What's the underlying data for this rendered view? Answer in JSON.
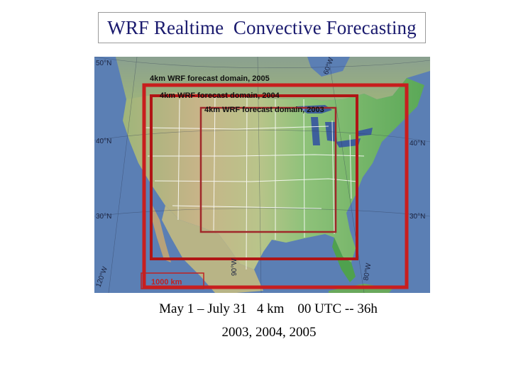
{
  "title": "WRF Realtime  Convective Forecasting",
  "map": {
    "domains": [
      {
        "label": "4km WRF forecast domain, 2005",
        "color": "#c81e1e"
      },
      {
        "label": "4km WRF forecast domain, 2004",
        "color": "#b01515"
      },
      {
        "label": "4km WRF forecast domain, 2003",
        "color": "#a0282a"
      }
    ],
    "grid_labels": {
      "lat_50": "50°N",
      "lat_40_left": "40°N",
      "lat_40_right": "40°N",
      "lat_30_left": "30°N",
      "lat_30_right": "30°N",
      "lon_120": "120°W",
      "lon_90": "90°W",
      "lon_80": "80°W",
      "lon_60": "60°W"
    },
    "scale_bar": "1000 km",
    "colors": {
      "ocean": "#5b7fb4",
      "land_low": "#7ab56a",
      "land_high": "#c9b98a",
      "state_lines": "#ffffff"
    }
  },
  "caption": {
    "line1": "May 1 – July 31   4 km    00 UTC -- 36h",
    "line2": "2003, 2004, 2005"
  }
}
